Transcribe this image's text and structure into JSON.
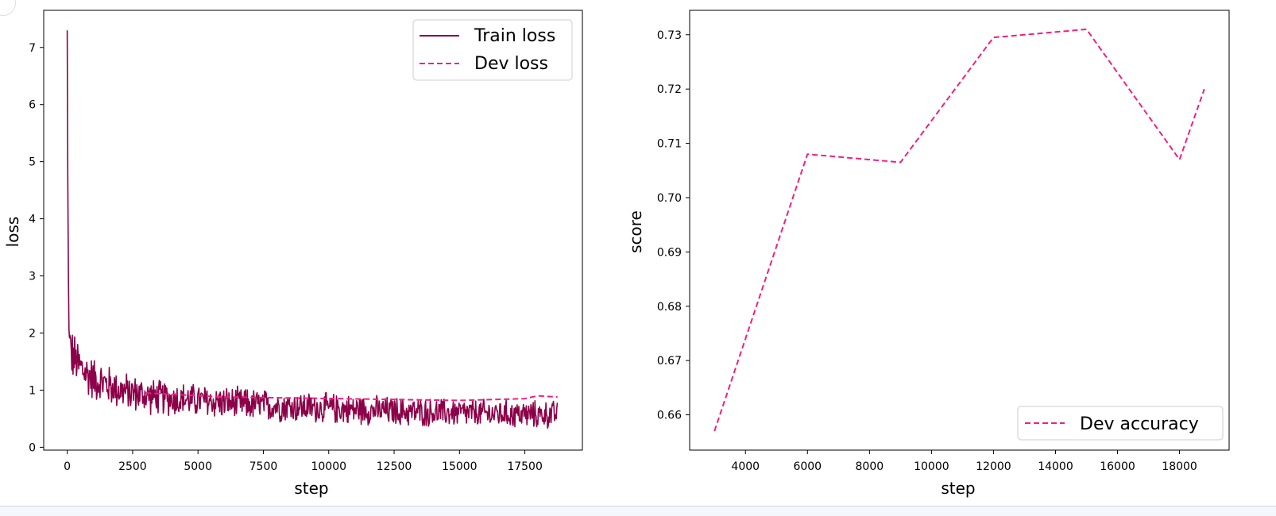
{
  "colors": {
    "train": "#8b0048",
    "dev": "#ef1f85",
    "axis": "#000000",
    "background": "#ffffff"
  },
  "chart_data": [
    {
      "type": "line",
      "xlabel": "step",
      "ylabel": "loss",
      "xlim": [
        -900,
        19700
      ],
      "ylim": [
        -0.05,
        7.65
      ],
      "xticks": [
        0,
        2500,
        5000,
        7500,
        10000,
        12500,
        15000,
        17500
      ],
      "xtick_labels": [
        "0",
        "2500",
        "5000",
        "7500",
        "10000",
        "12500",
        "15000",
        "17500"
      ],
      "yticks": [
        0,
        1,
        2,
        3,
        4,
        5,
        6,
        7
      ],
      "ytick_labels": [
        "0",
        "1",
        "2",
        "3",
        "4",
        "5",
        "6",
        "7"
      ],
      "legend_position": "top-right",
      "series": [
        {
          "name": "Train loss",
          "style": "solid",
          "noisy": true,
          "x": [
            0,
            30,
            60,
            120,
            200,
            400,
            700,
            1000,
            1500,
            2000,
            2500,
            3000,
            4000,
            5000,
            6000,
            7000,
            8000,
            9000,
            10000,
            11000,
            12000,
            13000,
            14000,
            15000,
            16000,
            17000,
            18000,
            18750
          ],
          "y": [
            7.3,
            3.8,
            2.1,
            1.7,
            1.6,
            1.45,
            1.3,
            1.2,
            1.1,
            1.0,
            0.95,
            0.9,
            0.85,
            0.82,
            0.78,
            0.75,
            0.72,
            0.7,
            0.68,
            0.66,
            0.64,
            0.62,
            0.61,
            0.6,
            0.59,
            0.58,
            0.57,
            0.57
          ]
        },
        {
          "name": "Dev loss",
          "style": "dashed",
          "x": [
            3000,
            6000,
            9000,
            12000,
            15000,
            17500,
            18000,
            18750
          ],
          "y": [
            0.95,
            0.88,
            0.86,
            0.84,
            0.82,
            0.85,
            0.9,
            0.88
          ]
        }
      ]
    },
    {
      "type": "line",
      "xlabel": "step",
      "ylabel": "score",
      "xlim": [
        2200,
        19600
      ],
      "ylim": [
        0.6535,
        0.7345
      ],
      "xticks": [
        4000,
        6000,
        8000,
        10000,
        12000,
        14000,
        16000,
        18000
      ],
      "xtick_labels": [
        "4000",
        "6000",
        "8000",
        "10000",
        "12000",
        "14000",
        "16000",
        "18000"
      ],
      "yticks": [
        0.66,
        0.67,
        0.68,
        0.69,
        0.7,
        0.71,
        0.72,
        0.73
      ],
      "ytick_labels": [
        "0.66",
        "0.67",
        "0.68",
        "0.69",
        "0.70",
        "0.71",
        "0.72",
        "0.73"
      ],
      "legend_position": "bottom-right",
      "series": [
        {
          "name": "Dev accuracy",
          "style": "dashed",
          "x": [
            3000,
            6000,
            9000,
            12000,
            15000,
            18000,
            18800
          ],
          "y": [
            0.657,
            0.708,
            0.7065,
            0.7295,
            0.731,
            0.707,
            0.72
          ]
        }
      ]
    }
  ]
}
